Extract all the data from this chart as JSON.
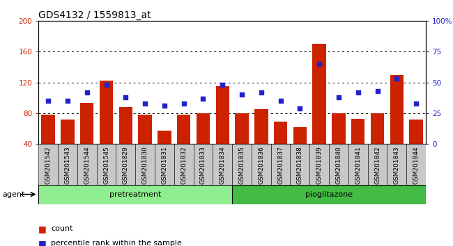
{
  "title": "GDS4132 / 1559813_at",
  "samples": [
    "GSM201542",
    "GSM201543",
    "GSM201544",
    "GSM201545",
    "GSM201829",
    "GSM201830",
    "GSM201831",
    "GSM201832",
    "GSM201833",
    "GSM201834",
    "GSM201835",
    "GSM201836",
    "GSM201837",
    "GSM201838",
    "GSM201839",
    "GSM201840",
    "GSM201841",
    "GSM201842",
    "GSM201843",
    "GSM201844"
  ],
  "counts": [
    78,
    72,
    93,
    122,
    88,
    78,
    57,
    78,
    80,
    115,
    80,
    85,
    69,
    62,
    170,
    80,
    73,
    80,
    130,
    72
  ],
  "percentiles": [
    35,
    35,
    42,
    48,
    38,
    33,
    31,
    33,
    37,
    48,
    40,
    42,
    35,
    29,
    65,
    38,
    42,
    43,
    53,
    33
  ],
  "group1_label": "pretreatment",
  "group1_count": 10,
  "group2_label": "pioglitazone",
  "group2_count": 10,
  "bar_color": "#cc2200",
  "dot_color": "#2222cc",
  "ylim_left": [
    40,
    200
  ],
  "ylim_right": [
    0,
    100
  ],
  "yticks_left": [
    40,
    80,
    120,
    160,
    200
  ],
  "yticks_right": [
    0,
    25,
    50,
    75,
    100
  ],
  "grid_values": [
    80,
    120,
    160
  ],
  "agent_label": "agent",
  "legend_count": "count",
  "legend_percentile": "percentile rank within the sample",
  "group_color1": "#90ee90",
  "group_color2": "#44bb44",
  "title_fontsize": 10,
  "tick_fontsize": 6.5
}
